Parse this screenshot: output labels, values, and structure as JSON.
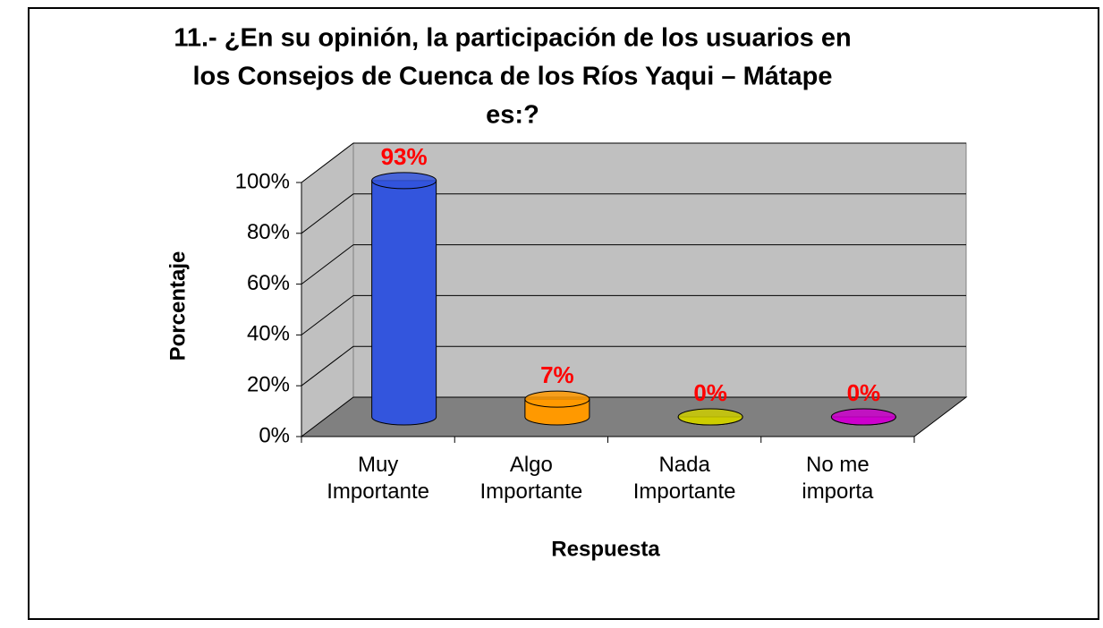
{
  "chart_data": {
    "type": "bar3d",
    "title": [
      "11.- ¿En su opinión, la participación de los usuarios en",
      "los Consejos de Cuenca de los Ríos Yaqui – Mátape",
      "es:?"
    ],
    "x_label": "Respuesta",
    "y_label": "Porcentaje",
    "categories": [
      "Muy Importante",
      "Algo Importante",
      "Nada Importante",
      "No me importa"
    ],
    "values": [
      93,
      7,
      0,
      0
    ],
    "value_labels": [
      "93%",
      "7%",
      "0%",
      "0%"
    ],
    "colors": [
      "#3355dd",
      "#ff9900",
      "#cccc00",
      "#cc00cc"
    ],
    "ylim": [
      0,
      100
    ],
    "yticks": [
      {
        "value": 0,
        "label": "0%"
      },
      {
        "value": 20,
        "label": "20%"
      },
      {
        "value": 40,
        "label": "40%"
      },
      {
        "value": 60,
        "label": "60%"
      },
      {
        "value": 80,
        "label": "80%"
      },
      {
        "value": 100,
        "label": "100%"
      }
    ],
    "grid": true
  }
}
